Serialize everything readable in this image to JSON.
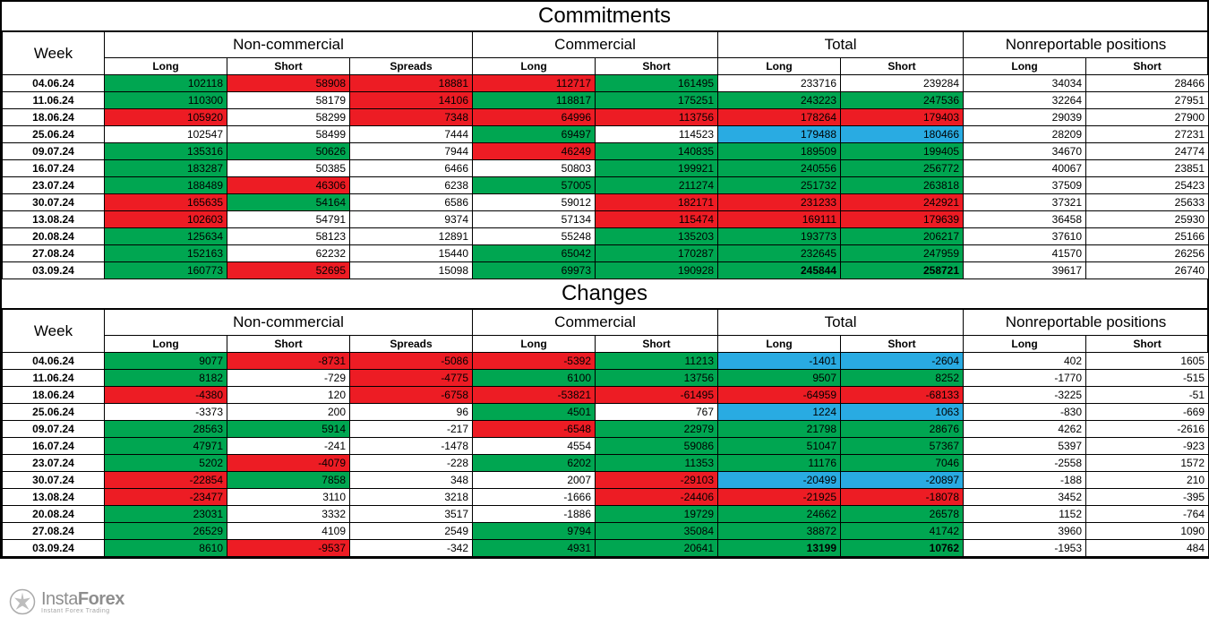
{
  "styling": {
    "green": "#00a651",
    "red": "#ed1c24",
    "blue": "#29abe2",
    "white": "#ffffff",
    "border": "#000000",
    "font_family": "Arial",
    "title_fontsize": 24,
    "group_header_fontsize": 17,
    "cell_fontsize": 12
  },
  "sections": [
    {
      "id": "commitments",
      "title": "Commitments"
    },
    {
      "id": "changes",
      "title": "Changes"
    }
  ],
  "column_groups": [
    {
      "label": "Week",
      "span": 1
    },
    {
      "label": "Non-commercial",
      "span": 3
    },
    {
      "label": "Commercial",
      "span": 2
    },
    {
      "label": "Total",
      "span": 2
    },
    {
      "label": "Nonreportable positions",
      "span": 2
    }
  ],
  "columns_row1": [
    "Week",
    "Non-commercial",
    "Commercial",
    "Total",
    "Nonreportable positions"
  ],
  "sub_columns": [
    "Long",
    "Short",
    "Spreads",
    "Long",
    "Short",
    "Long",
    "Short",
    "Long",
    "Short"
  ],
  "weeks": [
    "04.06.24",
    "11.06.24",
    "18.06.24",
    "25.06.24",
    "09.07.24",
    "16.07.24",
    "23.07.24",
    "30.07.24",
    "13.08.24",
    "20.08.24",
    "27.08.24",
    "03.09.24"
  ],
  "commitments_rows": [
    {
      "cells": [
        {
          "v": "102118",
          "bg": "green"
        },
        {
          "v": "58908",
          "bg": "red"
        },
        {
          "v": "18881",
          "bg": "red"
        },
        {
          "v": "112717",
          "bg": "red"
        },
        {
          "v": "161495",
          "bg": "green"
        },
        {
          "v": "233716",
          "bg": "white"
        },
        {
          "v": "239284",
          "bg": "white"
        },
        {
          "v": "34034",
          "bg": "white"
        },
        {
          "v": "28466",
          "bg": "white"
        }
      ]
    },
    {
      "cells": [
        {
          "v": "110300",
          "bg": "green"
        },
        {
          "v": "58179",
          "bg": "white"
        },
        {
          "v": "14106",
          "bg": "red"
        },
        {
          "v": "118817",
          "bg": "green"
        },
        {
          "v": "175251",
          "bg": "green"
        },
        {
          "v": "243223",
          "bg": "green"
        },
        {
          "v": "247536",
          "bg": "green"
        },
        {
          "v": "32264",
          "bg": "white"
        },
        {
          "v": "27951",
          "bg": "white"
        }
      ]
    },
    {
      "cells": [
        {
          "v": "105920",
          "bg": "red"
        },
        {
          "v": "58299",
          "bg": "white"
        },
        {
          "v": "7348",
          "bg": "red"
        },
        {
          "v": "64996",
          "bg": "red"
        },
        {
          "v": "113756",
          "bg": "red"
        },
        {
          "v": "178264",
          "bg": "red"
        },
        {
          "v": "179403",
          "bg": "red"
        },
        {
          "v": "29039",
          "bg": "white"
        },
        {
          "v": "27900",
          "bg": "white"
        }
      ]
    },
    {
      "cells": [
        {
          "v": "102547",
          "bg": "white"
        },
        {
          "v": "58499",
          "bg": "white"
        },
        {
          "v": "7444",
          "bg": "white"
        },
        {
          "v": "69497",
          "bg": "green"
        },
        {
          "v": "114523",
          "bg": "white"
        },
        {
          "v": "179488",
          "bg": "blue"
        },
        {
          "v": "180466",
          "bg": "blue"
        },
        {
          "v": "28209",
          "bg": "white"
        },
        {
          "v": "27231",
          "bg": "white"
        }
      ]
    },
    {
      "cells": [
        {
          "v": "135316",
          "bg": "green"
        },
        {
          "v": "50626",
          "bg": "green"
        },
        {
          "v": "7944",
          "bg": "white"
        },
        {
          "v": "46249",
          "bg": "red"
        },
        {
          "v": "140835",
          "bg": "green"
        },
        {
          "v": "189509",
          "bg": "green"
        },
        {
          "v": "199405",
          "bg": "green"
        },
        {
          "v": "34670",
          "bg": "white"
        },
        {
          "v": "24774",
          "bg": "white"
        }
      ]
    },
    {
      "cells": [
        {
          "v": "183287",
          "bg": "green"
        },
        {
          "v": "50385",
          "bg": "white"
        },
        {
          "v": "6466",
          "bg": "white"
        },
        {
          "v": "50803",
          "bg": "white"
        },
        {
          "v": "199921",
          "bg": "green"
        },
        {
          "v": "240556",
          "bg": "green"
        },
        {
          "v": "256772",
          "bg": "green"
        },
        {
          "v": "40067",
          "bg": "white"
        },
        {
          "v": "23851",
          "bg": "white"
        }
      ]
    },
    {
      "cells": [
        {
          "v": "188489",
          "bg": "green"
        },
        {
          "v": "46306",
          "bg": "red"
        },
        {
          "v": "6238",
          "bg": "white"
        },
        {
          "v": "57005",
          "bg": "green"
        },
        {
          "v": "211274",
          "bg": "green"
        },
        {
          "v": "251732",
          "bg": "green"
        },
        {
          "v": "263818",
          "bg": "green"
        },
        {
          "v": "37509",
          "bg": "white"
        },
        {
          "v": "25423",
          "bg": "white"
        }
      ]
    },
    {
      "cells": [
        {
          "v": "165635",
          "bg": "red"
        },
        {
          "v": "54164",
          "bg": "green"
        },
        {
          "v": "6586",
          "bg": "white"
        },
        {
          "v": "59012",
          "bg": "white"
        },
        {
          "v": "182171",
          "bg": "red"
        },
        {
          "v": "231233",
          "bg": "red"
        },
        {
          "v": "242921",
          "bg": "red"
        },
        {
          "v": "37321",
          "bg": "white"
        },
        {
          "v": "25633",
          "bg": "white"
        }
      ]
    },
    {
      "cells": [
        {
          "v": "102603",
          "bg": "red"
        },
        {
          "v": "54791",
          "bg": "white"
        },
        {
          "v": "9374",
          "bg": "white"
        },
        {
          "v": "57134",
          "bg": "white"
        },
        {
          "v": "115474",
          "bg": "red"
        },
        {
          "v": "169111",
          "bg": "red"
        },
        {
          "v": "179639",
          "bg": "red"
        },
        {
          "v": "36458",
          "bg": "white"
        },
        {
          "v": "25930",
          "bg": "white"
        }
      ]
    },
    {
      "cells": [
        {
          "v": "125634",
          "bg": "green"
        },
        {
          "v": "58123",
          "bg": "white"
        },
        {
          "v": "12891",
          "bg": "white"
        },
        {
          "v": "55248",
          "bg": "white"
        },
        {
          "v": "135203",
          "bg": "green"
        },
        {
          "v": "193773",
          "bg": "green"
        },
        {
          "v": "206217",
          "bg": "green"
        },
        {
          "v": "37610",
          "bg": "white"
        },
        {
          "v": "25166",
          "bg": "white"
        }
      ]
    },
    {
      "cells": [
        {
          "v": "152163",
          "bg": "green"
        },
        {
          "v": "62232",
          "bg": "white"
        },
        {
          "v": "15440",
          "bg": "white"
        },
        {
          "v": "65042",
          "bg": "green"
        },
        {
          "v": "170287",
          "bg": "green"
        },
        {
          "v": "232645",
          "bg": "green"
        },
        {
          "v": "247959",
          "bg": "green"
        },
        {
          "v": "41570",
          "bg": "white"
        },
        {
          "v": "26256",
          "bg": "white"
        }
      ]
    },
    {
      "cells": [
        {
          "v": "160773",
          "bg": "green"
        },
        {
          "v": "52695",
          "bg": "red"
        },
        {
          "v": "15098",
          "bg": "white"
        },
        {
          "v": "69973",
          "bg": "green"
        },
        {
          "v": "190928",
          "bg": "green"
        },
        {
          "v": "245844",
          "bg": "green",
          "bold": true
        },
        {
          "v": "258721",
          "bg": "green",
          "bold": true
        },
        {
          "v": "39617",
          "bg": "white"
        },
        {
          "v": "26740",
          "bg": "white"
        }
      ]
    }
  ],
  "changes_rows": [
    {
      "cells": [
        {
          "v": "9077",
          "bg": "green"
        },
        {
          "v": "-8731",
          "bg": "red"
        },
        {
          "v": "-5086",
          "bg": "red"
        },
        {
          "v": "-5392",
          "bg": "red"
        },
        {
          "v": "11213",
          "bg": "green"
        },
        {
          "v": "-1401",
          "bg": "blue"
        },
        {
          "v": "-2604",
          "bg": "blue"
        },
        {
          "v": "402",
          "bg": "white"
        },
        {
          "v": "1605",
          "bg": "white"
        }
      ]
    },
    {
      "cells": [
        {
          "v": "8182",
          "bg": "green"
        },
        {
          "v": "-729",
          "bg": "white"
        },
        {
          "v": "-4775",
          "bg": "red"
        },
        {
          "v": "6100",
          "bg": "green"
        },
        {
          "v": "13756",
          "bg": "green"
        },
        {
          "v": "9507",
          "bg": "green"
        },
        {
          "v": "8252",
          "bg": "green"
        },
        {
          "v": "-1770",
          "bg": "white"
        },
        {
          "v": "-515",
          "bg": "white"
        }
      ]
    },
    {
      "cells": [
        {
          "v": "-4380",
          "bg": "red"
        },
        {
          "v": "120",
          "bg": "white"
        },
        {
          "v": "-6758",
          "bg": "red"
        },
        {
          "v": "-53821",
          "bg": "red"
        },
        {
          "v": "-61495",
          "bg": "red"
        },
        {
          "v": "-64959",
          "bg": "red"
        },
        {
          "v": "-68133",
          "bg": "red"
        },
        {
          "v": "-3225",
          "bg": "white"
        },
        {
          "v": "-51",
          "bg": "white"
        }
      ]
    },
    {
      "cells": [
        {
          "v": "-3373",
          "bg": "white"
        },
        {
          "v": "200",
          "bg": "white"
        },
        {
          "v": "96",
          "bg": "white"
        },
        {
          "v": "4501",
          "bg": "green"
        },
        {
          "v": "767",
          "bg": "white"
        },
        {
          "v": "1224",
          "bg": "blue"
        },
        {
          "v": "1063",
          "bg": "blue"
        },
        {
          "v": "-830",
          "bg": "white"
        },
        {
          "v": "-669",
          "bg": "white"
        }
      ]
    },
    {
      "cells": [
        {
          "v": "28563",
          "bg": "green"
        },
        {
          "v": "5914",
          "bg": "green"
        },
        {
          "v": "-217",
          "bg": "white"
        },
        {
          "v": "-6548",
          "bg": "red"
        },
        {
          "v": "22979",
          "bg": "green"
        },
        {
          "v": "21798",
          "bg": "green"
        },
        {
          "v": "28676",
          "bg": "green"
        },
        {
          "v": "4262",
          "bg": "white"
        },
        {
          "v": "-2616",
          "bg": "white"
        }
      ]
    },
    {
      "cells": [
        {
          "v": "47971",
          "bg": "green"
        },
        {
          "v": "-241",
          "bg": "white"
        },
        {
          "v": "-1478",
          "bg": "white"
        },
        {
          "v": "4554",
          "bg": "white"
        },
        {
          "v": "59086",
          "bg": "green"
        },
        {
          "v": "51047",
          "bg": "green"
        },
        {
          "v": "57367",
          "bg": "green"
        },
        {
          "v": "5397",
          "bg": "white"
        },
        {
          "v": "-923",
          "bg": "white"
        }
      ]
    },
    {
      "cells": [
        {
          "v": "5202",
          "bg": "green"
        },
        {
          "v": "-4079",
          "bg": "red"
        },
        {
          "v": "-228",
          "bg": "white"
        },
        {
          "v": "6202",
          "bg": "green"
        },
        {
          "v": "11353",
          "bg": "green"
        },
        {
          "v": "11176",
          "bg": "green"
        },
        {
          "v": "7046",
          "bg": "green"
        },
        {
          "v": "-2558",
          "bg": "white"
        },
        {
          "v": "1572",
          "bg": "white"
        }
      ]
    },
    {
      "cells": [
        {
          "v": "-22854",
          "bg": "red"
        },
        {
          "v": "7858",
          "bg": "green"
        },
        {
          "v": "348",
          "bg": "white"
        },
        {
          "v": "2007",
          "bg": "white"
        },
        {
          "v": "-29103",
          "bg": "red"
        },
        {
          "v": "-20499",
          "bg": "blue"
        },
        {
          "v": "-20897",
          "bg": "blue"
        },
        {
          "v": "-188",
          "bg": "white"
        },
        {
          "v": "210",
          "bg": "white"
        }
      ]
    },
    {
      "cells": [
        {
          "v": "-23477",
          "bg": "red"
        },
        {
          "v": "3110",
          "bg": "white"
        },
        {
          "v": "3218",
          "bg": "white"
        },
        {
          "v": "-1666",
          "bg": "white"
        },
        {
          "v": "-24406",
          "bg": "red"
        },
        {
          "v": "-21925",
          "bg": "red"
        },
        {
          "v": "-18078",
          "bg": "red"
        },
        {
          "v": "3452",
          "bg": "white"
        },
        {
          "v": "-395",
          "bg": "white"
        }
      ]
    },
    {
      "cells": [
        {
          "v": "23031",
          "bg": "green"
        },
        {
          "v": "3332",
          "bg": "white"
        },
        {
          "v": "3517",
          "bg": "white"
        },
        {
          "v": "-1886",
          "bg": "white"
        },
        {
          "v": "19729",
          "bg": "green"
        },
        {
          "v": "24662",
          "bg": "green"
        },
        {
          "v": "26578",
          "bg": "green"
        },
        {
          "v": "1152",
          "bg": "white"
        },
        {
          "v": "-764",
          "bg": "white"
        }
      ]
    },
    {
      "cells": [
        {
          "v": "26529",
          "bg": "green"
        },
        {
          "v": "4109",
          "bg": "white"
        },
        {
          "v": "2549",
          "bg": "white"
        },
        {
          "v": "9794",
          "bg": "green"
        },
        {
          "v": "35084",
          "bg": "green"
        },
        {
          "v": "38872",
          "bg": "green"
        },
        {
          "v": "41742",
          "bg": "green"
        },
        {
          "v": "3960",
          "bg": "white"
        },
        {
          "v": "1090",
          "bg": "white"
        }
      ]
    },
    {
      "cells": [
        {
          "v": "8610",
          "bg": "green"
        },
        {
          "v": "-9537",
          "bg": "red"
        },
        {
          "v": "-342",
          "bg": "white"
        },
        {
          "v": "4931",
          "bg": "green"
        },
        {
          "v": "20641",
          "bg": "green"
        },
        {
          "v": "13199",
          "bg": "green",
          "bold": true
        },
        {
          "v": "10762",
          "bg": "green",
          "bold": true
        },
        {
          "v": "-1953",
          "bg": "white"
        },
        {
          "v": "484",
          "bg": "white"
        }
      ]
    }
  ],
  "watermark": {
    "brand_thin": "Insta",
    "brand_bold": "Forex",
    "tagline": "Instant Forex Trading"
  }
}
